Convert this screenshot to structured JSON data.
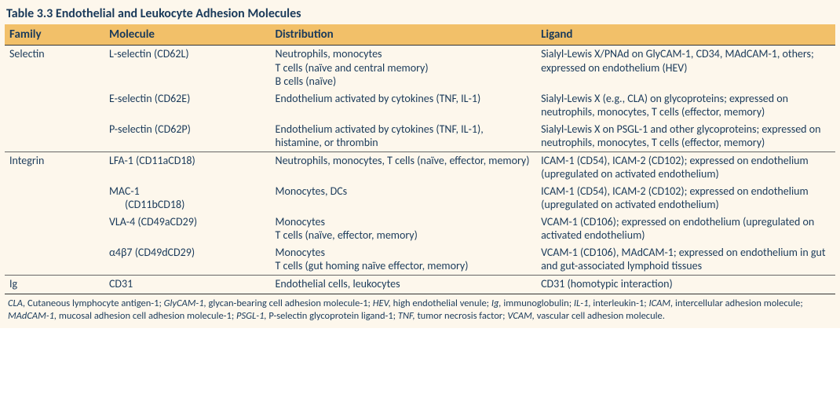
{
  "title": "Table 3.3 Endothelial and Leukocyte Adhesion Molecules",
  "columns": [
    "Family",
    "Molecule",
    "Distribution",
    "Ligand"
  ],
  "col_widths": [
    "12%",
    "20%",
    "32%",
    "36%"
  ],
  "header_bg": "#f2c069",
  "body_bg": "#fdf7ec",
  "text_color": "#1a3a5a",
  "border_color": "#333333",
  "font_family": "Gill Sans, Gill Sans MT, Calibri, sans-serif",
  "title_fontsize": 16,
  "body_fontsize": 14,
  "footnote_fontsize": 12.5,
  "sections": [
    {
      "family": "Selectin",
      "rows": [
        {
          "molecule": "L-selectin (CD62L)",
          "distribution": [
            "Neutrophils, monocytes",
            "T cells (naïve and central memory)",
            "B cells (naïve)"
          ],
          "ligand": "Sialyl-Lewis X/PNAd on GlyCAM-1, CD34, MAdCAM-1, others; expressed on endothelium (HEV)"
        },
        {
          "molecule": "E-selectin (CD62E)",
          "distribution": [
            "Endothelium activated by cytokines (TNF, IL-1)"
          ],
          "ligand": "Sialyl-Lewis X (e.g., CLA) on glycoproteins; expressed on neutrophils, monocytes, T cells (effector, memory)"
        },
        {
          "molecule": "P-selectin (CD62P)",
          "distribution": [
            "Endothelium activated by cytokines (TNF, IL-1), histamine, or thrombin"
          ],
          "ligand": "Sialyl-Lewis X on PSGL-1 and other glycoproteins; expressed on neutrophils, monocytes, T cells (effector, memory)"
        }
      ]
    },
    {
      "family": "Integrin",
      "rows": [
        {
          "molecule": "LFA-1 (CD11aCD18)",
          "distribution": [
            "Neutrophils, monocytes, T cells (naïve, effector, memory)"
          ],
          "ligand": "ICAM-1 (CD54), ICAM-2 (CD102); expressed on endothelium (upregulated on activated endothelium)"
        },
        {
          "molecule": "MAC-1 (CD11bCD18)",
          "molecule_lines": [
            "MAC-1",
            "(CD11bCD18)"
          ],
          "distribution": [
            "Monocytes, DCs"
          ],
          "ligand": "ICAM-1 (CD54), ICAM-2 (CD102); expressed on endothelium (upregulated on activated endothelium)"
        },
        {
          "molecule": "VLA-4 (CD49aCD29)",
          "distribution": [
            "Monocytes",
            "T cells (naïve, effector, memory)"
          ],
          "ligand": "VCAM-1 (CD106); expressed on endothelium (upregulated on activated endothelium)"
        },
        {
          "molecule": "α4β7 (CD49dCD29)",
          "distribution": [
            "Monocytes",
            "T cells (gut homing naïve effector, memory)"
          ],
          "ligand": "VCAM-1 (CD106), MAdCAM-1; expressed on endothelium in gut and gut-associated lymphoid tissues"
        }
      ]
    },
    {
      "family": "Ig",
      "rows": [
        {
          "molecule": "CD31",
          "distribution": [
            "Endothelial cells, leukocytes"
          ],
          "ligand": "CD31 (homotypic interaction)"
        }
      ]
    }
  ],
  "footnote_parts": [
    {
      "abbr": "CLA,",
      "def": " Cutaneous lymphocyte antigen-1; "
    },
    {
      "abbr": "GlyCAM-1,",
      "def": " glycan-bearing cell adhesion molecule-1; "
    },
    {
      "abbr": "HEV,",
      "def": " high endothelial venule; "
    },
    {
      "abbr": "Ig,",
      "def": " immunoglobulin; "
    },
    {
      "abbr": "IL-1,",
      "def": " interleukin-1; "
    },
    {
      "abbr": "ICAM,",
      "def": " intercellular adhesion molecule; "
    },
    {
      "abbr": "MAdCAM-1,",
      "def": " mucosal adhesion cell adhesion molecule-1; "
    },
    {
      "abbr": "PSGL-1,",
      "def": " P-selectin glycoprotein ligand-1; "
    },
    {
      "abbr": "TNF,",
      "def": " tumor necrosis factor; "
    },
    {
      "abbr": "VCAM,",
      "def": " vascular cell adhesion molecule."
    }
  ]
}
